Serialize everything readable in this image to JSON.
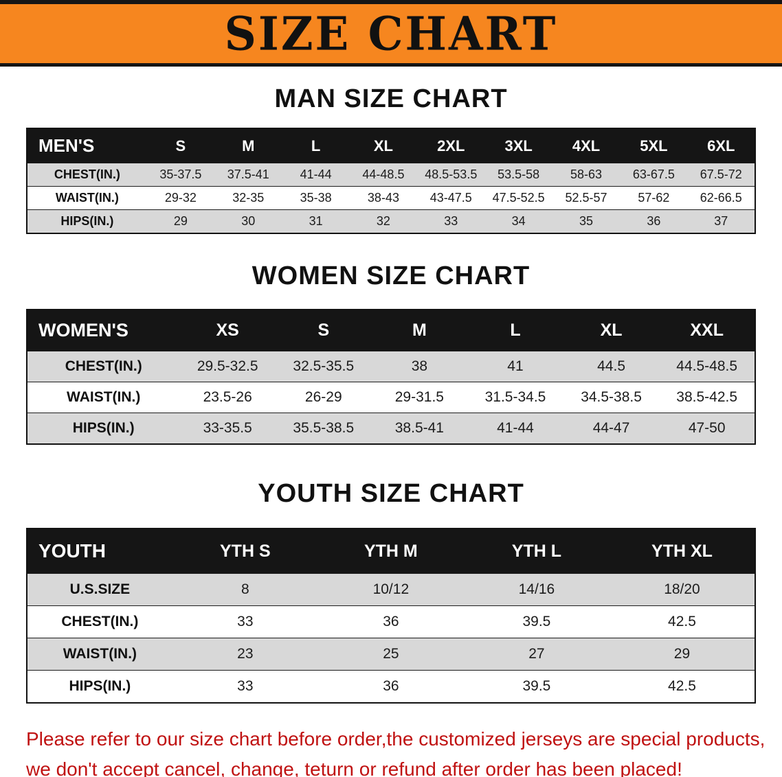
{
  "banner": {
    "title": "SIZE CHART"
  },
  "colors": {
    "banner_bg": "#f6861f",
    "table_header_bg": "#151515",
    "table_header_text": "#ffffff",
    "row_alt_bg": "#d8d8d8",
    "footnote_text": "#c01212"
  },
  "sections": [
    {
      "heading": "MAN SIZE CHART",
      "table": {
        "header": [
          "MEN'S",
          "S",
          "M",
          "L",
          "XL",
          "2XL",
          "3XL",
          "4XL",
          "5XL",
          "6XL"
        ],
        "rows": [
          [
            "CHEST(IN.)",
            "35-37.5",
            "37.5-41",
            "41-44",
            "44-48.5",
            "48.5-53.5",
            "53.5-58",
            "58-63",
            "63-67.5",
            "67.5-72"
          ],
          [
            "WAIST(IN.)",
            "29-32",
            "32-35",
            "35-38",
            "38-43",
            "43-47.5",
            "47.5-52.5",
            "52.5-57",
            "57-62",
            "62-66.5"
          ],
          [
            "HIPS(IN.)",
            "29",
            "30",
            "31",
            "32",
            "33",
            "34",
            "35",
            "36",
            "37"
          ]
        ]
      }
    },
    {
      "heading": "WOMEN SIZE CHART",
      "table": {
        "header": [
          "WOMEN'S",
          "XS",
          "S",
          "M",
          "L",
          "XL",
          "XXL"
        ],
        "rows": [
          [
            "CHEST(IN.)",
            "29.5-32.5",
            "32.5-35.5",
            "38",
            "41",
            "44.5",
            "44.5-48.5"
          ],
          [
            "WAIST(IN.)",
            "23.5-26",
            "26-29",
            "29-31.5",
            "31.5-34.5",
            "34.5-38.5",
            "38.5-42.5"
          ],
          [
            "HIPS(IN.)",
            "33-35.5",
            "35.5-38.5",
            "38.5-41",
            "41-44",
            "44-47",
            "47-50"
          ]
        ]
      }
    },
    {
      "heading": "YOUTH SIZE CHART",
      "table": {
        "header": [
          "YOUTH",
          "YTH S",
          "YTH M",
          "YTH L",
          "YTH XL"
        ],
        "rows": [
          [
            "U.S.SIZE",
            "8",
            "10/12",
            "14/16",
            "18/20"
          ],
          [
            "CHEST(IN.)",
            "33",
            "36",
            "39.5",
            "42.5"
          ],
          [
            "WAIST(IN.)",
            "23",
            "25",
            "27",
            "29"
          ],
          [
            "HIPS(IN.)",
            "33",
            "36",
            "39.5",
            "42.5"
          ]
        ]
      }
    }
  ],
  "footnote": {
    "line1": "Please refer to our size chart before order,the customized jerseys are special products,",
    "line2": "we don't accept cancel, change, teturn or refund after order has been placed!"
  }
}
